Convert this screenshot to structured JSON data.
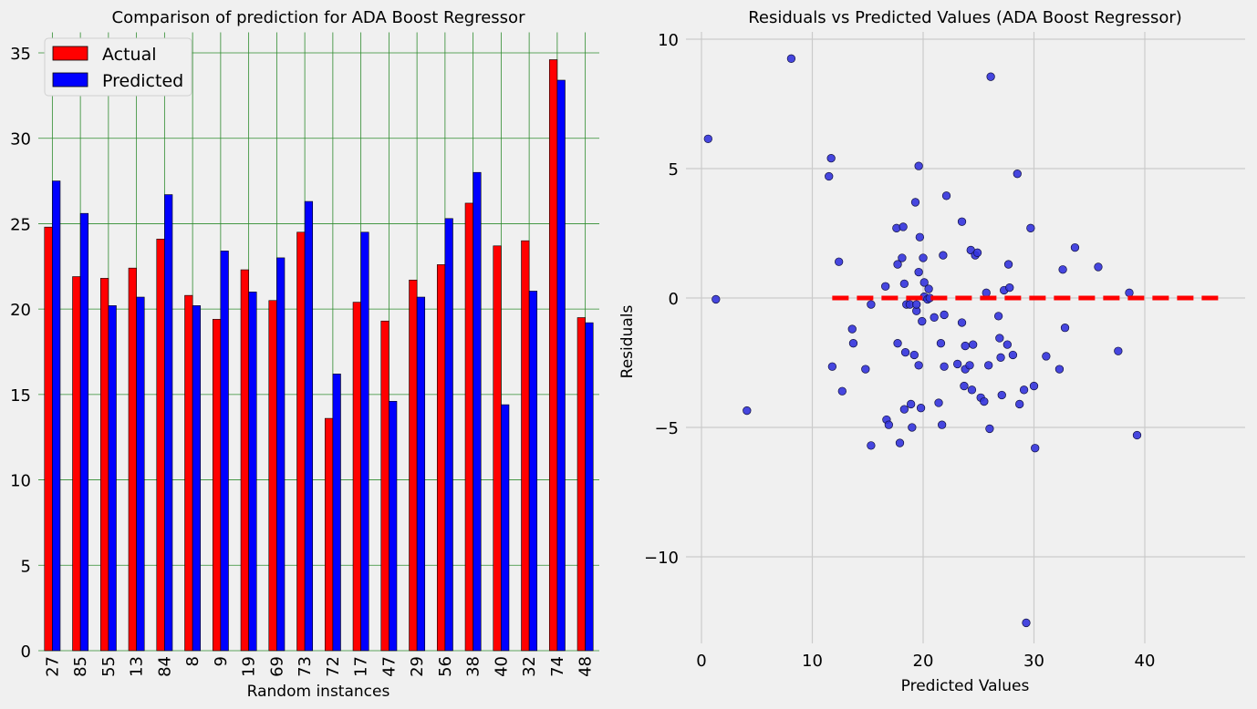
{
  "colors": {
    "background": "#f0f0f0",
    "actual": "#ff0000",
    "predicted": "#0000ff",
    "bar_grid": "#2e8b2e",
    "scatter_point": "#3333dd",
    "scatter_grid": "#cbcbcb",
    "zero_line": "#ff0000"
  },
  "chart_data": [
    {
      "type": "bar",
      "title": "Comparison of prediction for ADA Boost Regressor",
      "xlabel": "Random instances",
      "ylabel": "",
      "categories": [
        "27",
        "85",
        "55",
        "13",
        "84",
        "8",
        "9",
        "19",
        "69",
        "73",
        "72",
        "17",
        "47",
        "29",
        "56",
        "38",
        "40",
        "32",
        "74",
        "48"
      ],
      "series": [
        {
          "name": "Actual",
          "color": "#ff0000",
          "values": [
            24.8,
            21.9,
            21.8,
            22.4,
            24.1,
            20.8,
            19.4,
            22.3,
            20.5,
            24.5,
            13.6,
            20.4,
            19.3,
            21.7,
            22.6,
            26.2,
            23.7,
            24.0,
            34.6,
            19.5
          ]
        },
        {
          "name": "Predicted",
          "color": "#0000ff",
          "values": [
            27.5,
            25.6,
            20.2,
            20.7,
            26.7,
            20.2,
            23.4,
            21.0,
            23.0,
            26.3,
            16.2,
            24.5,
            14.6,
            20.7,
            25.3,
            28.0,
            14.4,
            21.05,
            33.4,
            19.2
          ]
        }
      ],
      "ylim": [
        0,
        36.2
      ],
      "yticks": [
        0,
        5,
        10,
        15,
        20,
        25,
        30,
        35
      ],
      "legend": "top-left",
      "grid": true
    },
    {
      "type": "scatter",
      "title": "Residuals vs Predicted Values (ADA Boost Regressor)",
      "xlabel": "Predicted Values",
      "ylabel": "Residuals",
      "xlim": [
        -1.5,
        49.5
      ],
      "ylim": [
        -13.3,
        10.3
      ],
      "xticks": [
        0,
        10,
        20,
        30,
        40
      ],
      "yticks": [
        -10,
        -5,
        0,
        5,
        10
      ],
      "yticklabels": [
        "−10",
        "−5",
        "0",
        "5",
        "10"
      ],
      "grid": true,
      "reference_line": {
        "y": 0,
        "x_from": 11.8,
        "x_to": 47.3,
        "style": "dashed",
        "color": "#ff0000"
      },
      "points": [
        [
          0.6,
          6.15
        ],
        [
          1.3,
          -0.05
        ],
        [
          4.1,
          -4.35
        ],
        [
          8.1,
          9.25
        ],
        [
          11.5,
          4.7
        ],
        [
          11.7,
          5.4
        ],
        [
          11.8,
          -2.65
        ],
        [
          12.4,
          1.4
        ],
        [
          12.7,
          -3.6
        ],
        [
          13.6,
          -1.2
        ],
        [
          13.7,
          -1.75
        ],
        [
          14.8,
          -2.75
        ],
        [
          15.3,
          -0.25
        ],
        [
          15.3,
          -5.7
        ],
        [
          16.6,
          0.45
        ],
        [
          16.7,
          -4.7
        ],
        [
          16.9,
          -4.9
        ],
        [
          17.6,
          2.7
        ],
        [
          17.7,
          1.3
        ],
        [
          17.7,
          -1.75
        ],
        [
          17.9,
          -5.6
        ],
        [
          18.1,
          1.55
        ],
        [
          18.2,
          2.75
        ],
        [
          18.3,
          0.55
        ],
        [
          18.3,
          -4.3
        ],
        [
          18.4,
          -2.1
        ],
        [
          18.5,
          -0.25
        ],
        [
          18.8,
          -0.25
        ],
        [
          18.9,
          -4.1
        ],
        [
          19.0,
          -5.0
        ],
        [
          19.2,
          -2.2
        ],
        [
          19.3,
          3.7
        ],
        [
          19.4,
          -0.5
        ],
        [
          19.4,
          -0.25
        ],
        [
          19.6,
          5.1
        ],
        [
          19.6,
          1.0
        ],
        [
          19.6,
          -2.6
        ],
        [
          19.7,
          2.35
        ],
        [
          19.8,
          -4.25
        ],
        [
          19.9,
          -0.9
        ],
        [
          20.0,
          1.55
        ],
        [
          20.1,
          0.6
        ],
        [
          20.1,
          0.05
        ],
        [
          20.4,
          -0.05
        ],
        [
          20.5,
          0.35
        ],
        [
          20.6,
          0.0
        ],
        [
          21.0,
          -0.75
        ],
        [
          21.4,
          -4.05
        ],
        [
          21.6,
          -1.75
        ],
        [
          21.7,
          -4.9
        ],
        [
          21.8,
          1.65
        ],
        [
          21.9,
          -2.65
        ],
        [
          21.9,
          -0.65
        ],
        [
          22.1,
          3.95
        ],
        [
          23.1,
          -2.55
        ],
        [
          23.5,
          2.95
        ],
        [
          23.5,
          -0.95
        ],
        [
          23.7,
          -3.4
        ],
        [
          23.8,
          -1.85
        ],
        [
          23.8,
          -2.75
        ],
        [
          24.2,
          -2.6
        ],
        [
          24.3,
          1.85
        ],
        [
          24.4,
          -3.55
        ],
        [
          24.5,
          -1.8
        ],
        [
          24.7,
          1.65
        ],
        [
          24.9,
          1.75
        ],
        [
          25.2,
          -3.85
        ],
        [
          25.5,
          -4.0
        ],
        [
          25.7,
          0.2
        ],
        [
          25.9,
          -2.6
        ],
        [
          26.0,
          -5.05
        ],
        [
          26.1,
          8.55
        ],
        [
          26.8,
          -0.7
        ],
        [
          26.9,
          -1.55
        ],
        [
          27.0,
          -2.3
        ],
        [
          27.1,
          -3.75
        ],
        [
          27.3,
          0.3
        ],
        [
          27.6,
          -1.8
        ],
        [
          27.7,
          1.3
        ],
        [
          27.8,
          0.4
        ],
        [
          28.1,
          -2.2
        ],
        [
          28.5,
          4.8
        ],
        [
          28.7,
          -4.1
        ],
        [
          29.1,
          -3.55
        ],
        [
          29.3,
          -12.55
        ],
        [
          29.7,
          2.7
        ],
        [
          30.0,
          -3.4
        ],
        [
          30.1,
          -5.8
        ],
        [
          31.1,
          -2.25
        ],
        [
          32.3,
          -2.75
        ],
        [
          32.6,
          1.1
        ],
        [
          32.8,
          -1.15
        ],
        [
          33.7,
          1.95
        ],
        [
          35.8,
          1.2
        ],
        [
          37.6,
          -2.05
        ],
        [
          38.6,
          0.2
        ],
        [
          39.3,
          -5.3
        ]
      ]
    }
  ]
}
